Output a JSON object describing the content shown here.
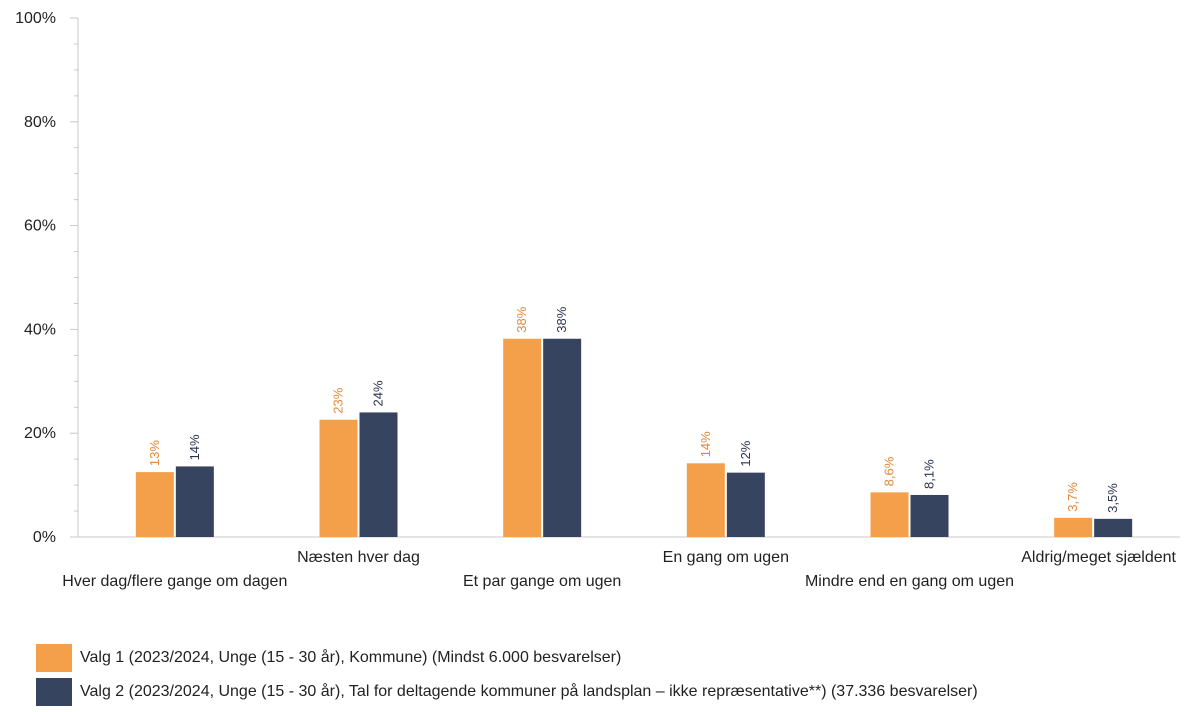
{
  "chart_data": {
    "type": "bar",
    "categories": [
      "Hver dag/flere gange om dagen",
      "Næsten hver dag",
      "Et par gange om ugen",
      "En gang om ugen",
      "Mindre end en gang om ugen",
      "Aldrig/meget sjældent"
    ],
    "series": [
      {
        "name": "Valg 1 (2023/2024, Unge (15 - 30 år), Kommune) (Mindst 6.000 besvarelser)",
        "color": "#F4A04A",
        "label_color": "#E0883A",
        "values": [
          12.5,
          22.6,
          38.2,
          14.2,
          8.6,
          3.7
        ],
        "labels": [
          "13%",
          "23%",
          "38%",
          "14%",
          "8,6%",
          "3,7%"
        ]
      },
      {
        "name": "Valg 2 (2023/2024, Unge (15 - 30 år), Tal for deltagende kommuner på landsplan – ikke repræsentative**) (37.336 besvarelser)",
        "color": "#36445F",
        "label_color": "#2A3550",
        "values": [
          13.6,
          24.0,
          38.2,
          12.4,
          8.1,
          3.5
        ],
        "labels": [
          "14%",
          "24%",
          "38%",
          "12%",
          "8,1%",
          "3,5%"
        ]
      }
    ],
    "y_ticks": [
      "0%",
      "20%",
      "40%",
      "60%",
      "80%",
      "100%"
    ],
    "ylim": [
      0,
      100
    ],
    "grid": false,
    "legend_position": "bottom-left"
  }
}
